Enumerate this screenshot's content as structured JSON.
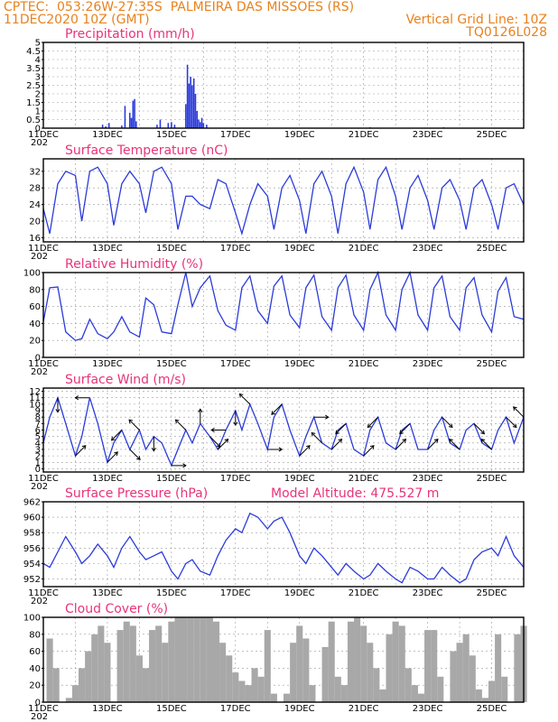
{
  "header": {
    "station": "CPTEC:  053:26W-27:35S  PALMEIRA DAS MISSOES (RS)",
    "run": "11DEC2020 10Z (GMT)",
    "grid": "Vertical Grid Line: 10Z",
    "code": "TQ0126L028"
  },
  "colors": {
    "header": "#e8811c",
    "title": "#e8337a",
    "series": "#2b3bd9",
    "cloud": "#a8a8a8"
  },
  "x_axis": {
    "start_day": 11,
    "end_day": 26,
    "labels": [
      {
        "day": 11,
        "text": "11DEC"
      },
      {
        "day": 13,
        "text": "13DEC"
      },
      {
        "day": 15,
        "text": "15DEC"
      },
      {
        "day": 17,
        "text": "17DEC"
      },
      {
        "day": 19,
        "text": "19DEC"
      },
      {
        "day": 21,
        "text": "21DEC"
      },
      {
        "day": 23,
        "text": "23DEC"
      },
      {
        "day": 25,
        "text": "25DEC"
      }
    ],
    "year_stub": "202"
  },
  "chart_data": [
    {
      "type": "bar",
      "title": "Precipitation (mm/h)",
      "ylim": [
        0,
        5
      ],
      "yticks": [
        "0",
        "0.5",
        "1",
        "1.5",
        "2",
        "2.5",
        "3",
        "3.5",
        "4",
        "4.5",
        "5"
      ],
      "x": [
        12.85,
        12.95,
        13.05,
        13.45,
        13.55,
        13.7,
        13.75,
        13.8,
        13.85,
        13.9,
        14.55,
        14.65,
        14.9,
        15.0,
        15.1,
        15.45,
        15.5,
        15.55,
        15.6,
        15.65,
        15.7,
        15.75,
        15.8,
        15.85,
        15.9,
        15.95,
        16.0,
        16.1,
        21.2,
        23.5
      ],
      "values": [
        0.2,
        0.1,
        0.3,
        0.15,
        1.3,
        0.9,
        0.6,
        1.6,
        1.7,
        0.4,
        0.2,
        0.5,
        0.3,
        0.35,
        0.2,
        1.4,
        3.7,
        2.6,
        3.0,
        2.5,
        2.9,
        2.0,
        1.0,
        0.5,
        0.35,
        0.6,
        0.3,
        0.2,
        0.05,
        0.05
      ]
    },
    {
      "type": "line",
      "title": "Surface Temperature (nC)",
      "ylim": [
        15,
        35
      ],
      "yticks": [
        "16",
        "20",
        "24",
        "28",
        "32"
      ],
      "x": [
        11.0,
        11.2,
        11.45,
        11.7,
        12.0,
        12.2,
        12.45,
        12.7,
        13.0,
        13.2,
        13.45,
        13.7,
        14.0,
        14.2,
        14.45,
        14.7,
        15.0,
        15.2,
        15.45,
        15.65,
        15.9,
        16.2,
        16.45,
        16.7,
        17.0,
        17.2,
        17.45,
        17.7,
        18.0,
        18.2,
        18.45,
        18.7,
        19.0,
        19.2,
        19.45,
        19.7,
        20.0,
        20.2,
        20.45,
        20.7,
        21.0,
        21.2,
        21.45,
        21.7,
        22.0,
        22.2,
        22.45,
        22.7,
        23.0,
        23.2,
        23.45,
        23.7,
        24.0,
        24.2,
        24.45,
        24.7,
        25.0,
        25.2,
        25.45,
        25.7,
        26.0
      ],
      "values": [
        23,
        17,
        29,
        32,
        31,
        20,
        32,
        33,
        29,
        19,
        29,
        32,
        29,
        22,
        32,
        33,
        29,
        18,
        26,
        26,
        24,
        23,
        30,
        29,
        22,
        17,
        24,
        29,
        26,
        18,
        28,
        31,
        25,
        17,
        29,
        32,
        26,
        17,
        29,
        33,
        27,
        18,
        30,
        33,
        26,
        18,
        28,
        31,
        25,
        18,
        28,
        30,
        25,
        18,
        28,
        30,
        24,
        18,
        28,
        29,
        24
      ]
    },
    {
      "type": "line",
      "title": "Relative Humidity (%)",
      "ylim": [
        0,
        100
      ],
      "yticks": [
        "0",
        "20",
        "40",
        "60",
        "80",
        "100"
      ],
      "x": [
        11.0,
        11.2,
        11.45,
        11.7,
        12.0,
        12.2,
        12.45,
        12.7,
        13.0,
        13.2,
        13.45,
        13.7,
        14.0,
        14.2,
        14.45,
        14.7,
        15.0,
        15.2,
        15.45,
        15.65,
        15.9,
        16.2,
        16.45,
        16.7,
        17.0,
        17.2,
        17.45,
        17.7,
        18.0,
        18.2,
        18.45,
        18.7,
        19.0,
        19.2,
        19.45,
        19.7,
        20.0,
        20.2,
        20.45,
        20.7,
        21.0,
        21.2,
        21.45,
        21.7,
        22.0,
        22.2,
        22.45,
        22.7,
        23.0,
        23.2,
        23.45,
        23.7,
        24.0,
        24.2,
        24.45,
        24.7,
        25.0,
        25.2,
        25.45,
        25.7,
        26.0
      ],
      "values": [
        42,
        82,
        83,
        30,
        20,
        22,
        45,
        28,
        22,
        30,
        48,
        30,
        24,
        70,
        62,
        30,
        28,
        62,
        100,
        60,
        82,
        96,
        55,
        38,
        32,
        82,
        96,
        55,
        40,
        84,
        96,
        50,
        35,
        82,
        97,
        48,
        32,
        82,
        97,
        50,
        32,
        80,
        100,
        50,
        32,
        80,
        100,
        50,
        32,
        82,
        96,
        48,
        32,
        82,
        94,
        50,
        30,
        78,
        94,
        48,
        45
      ]
    },
    {
      "type": "line",
      "title": "Surface Wind (m/s)",
      "ylim": [
        -0.5,
        12.5
      ],
      "yticks": [
        "0",
        "1",
        "2",
        "3",
        "4",
        "5",
        "6",
        "7",
        "8",
        "9",
        "10",
        "11",
        "12"
      ],
      "x": [
        11.0,
        11.2,
        11.45,
        11.7,
        12.0,
        12.2,
        12.45,
        12.7,
        13.0,
        13.2,
        13.45,
        13.7,
        14.0,
        14.2,
        14.45,
        14.7,
        15.0,
        15.2,
        15.45,
        15.65,
        15.9,
        16.2,
        16.45,
        16.7,
        17.0,
        17.2,
        17.45,
        17.7,
        18.0,
        18.2,
        18.45,
        18.7,
        19.0,
        19.2,
        19.45,
        19.7,
        20.0,
        20.2,
        20.45,
        20.7,
        21.0,
        21.2,
        21.45,
        21.7,
        22.0,
        22.2,
        22.45,
        22.7,
        23.0,
        23.2,
        23.45,
        23.7,
        24.0,
        24.2,
        24.45,
        24.7,
        25.0,
        25.2,
        25.45,
        25.7,
        26.0
      ],
      "values": [
        4,
        8,
        11,
        7,
        2,
        5,
        11,
        7,
        1,
        4,
        6,
        3,
        6,
        3,
        5,
        4,
        0.5,
        3,
        6,
        4,
        7,
        5,
        3,
        6,
        9,
        6,
        10,
        7,
        3,
        8,
        10,
        6,
        2,
        5,
        8,
        4,
        3,
        6,
        7,
        3,
        2,
        6,
        8,
        4,
        3,
        6,
        7,
        3,
        3,
        6,
        8,
        4,
        3,
        6,
        7,
        4,
        3,
        6,
        8,
        4,
        8
      ]
    },
    {
      "type": "line",
      "title": "Surface Pressure (hPa)",
      "ylim": [
        951,
        962
      ],
      "yticks": [
        "952",
        "954",
        "956",
        "958",
        "960",
        "962"
      ],
      "x": [
        11.0,
        11.2,
        11.45,
        11.7,
        12.0,
        12.2,
        12.45,
        12.7,
        13.0,
        13.2,
        13.45,
        13.7,
        14.0,
        14.2,
        14.45,
        14.7,
        15.0,
        15.2,
        15.45,
        15.65,
        15.9,
        16.2,
        16.45,
        16.7,
        17.0,
        17.2,
        17.45,
        17.7,
        18.0,
        18.2,
        18.45,
        18.7,
        19.0,
        19.2,
        19.45,
        19.7,
        20.0,
        20.2,
        20.45,
        20.7,
        21.0,
        21.2,
        21.45,
        21.7,
        22.0,
        22.2,
        22.45,
        22.7,
        23.0,
        23.2,
        23.45,
        23.7,
        24.0,
        24.2,
        24.45,
        24.7,
        25.0,
        25.2,
        25.45,
        25.7,
        26.0
      ],
      "values": [
        954,
        953.5,
        955.5,
        957.5,
        955.5,
        954,
        955,
        956.5,
        955,
        953.5,
        956,
        957.5,
        955.5,
        954.5,
        955,
        955.5,
        953,
        952,
        954,
        954.5,
        953,
        952.5,
        955,
        957,
        958.5,
        958,
        960.5,
        960,
        958.5,
        959.5,
        960,
        958,
        955,
        954,
        956,
        955,
        953.5,
        952.5,
        954,
        953,
        952,
        952.5,
        954,
        953,
        952,
        951.5,
        953.5,
        953,
        952,
        952,
        953.5,
        952.5,
        951.5,
        952,
        954.5,
        955.5,
        956,
        955,
        957.5,
        955,
        953.5
      ]
    },
    {
      "type": "bar",
      "title": "Cloud Cover (%)",
      "ylim": [
        0,
        100
      ],
      "yticks": [
        "0",
        "20",
        "40",
        "60",
        "80",
        "100"
      ],
      "x": [
        11.2,
        11.4,
        11.6,
        11.8,
        12.0,
        12.2,
        12.4,
        12.6,
        12.8,
        13.0,
        13.2,
        13.4,
        13.6,
        13.8,
        14.0,
        14.2,
        14.4,
        14.6,
        14.8,
        15.0,
        15.2,
        15.4,
        15.6,
        15.8,
        16.0,
        16.2,
        16.4,
        16.6,
        16.8,
        17.0,
        17.2,
        17.4,
        17.6,
        17.8,
        18.0,
        18.2,
        18.4,
        18.6,
        18.8,
        19.0,
        19.2,
        19.4,
        19.6,
        19.8,
        20.0,
        20.2,
        20.4,
        20.6,
        20.8,
        21.0,
        21.2,
        21.4,
        21.6,
        21.8,
        22.0,
        22.2,
        22.4,
        22.6,
        22.8,
        23.0,
        23.2,
        23.4,
        23.6,
        23.8,
        24.0,
        24.2,
        24.4,
        24.6,
        24.8,
        25.0,
        25.2,
        25.4,
        25.6,
        25.8,
        26.0
      ],
      "values": [
        75,
        40,
        0,
        5,
        20,
        40,
        60,
        80,
        90,
        70,
        0,
        85,
        95,
        90,
        55,
        40,
        85,
        90,
        70,
        95,
        100,
        100,
        100,
        100,
        100,
        100,
        95,
        70,
        55,
        35,
        25,
        20,
        40,
        30,
        85,
        10,
        0,
        10,
        70,
        90,
        75,
        20,
        0,
        65,
        95,
        30,
        20,
        95,
        100,
        90,
        70,
        40,
        15,
        80,
        95,
        90,
        40,
        20,
        10,
        85,
        85,
        30,
        0,
        60,
        70,
        80,
        55,
        15,
        5,
        25,
        80,
        30,
        0,
        80,
        90
      ]
    }
  ],
  "wind_arrows": {
    "x": [
      11.45,
      12.0,
      12.45,
      13.0,
      13.45,
      13.7,
      14.0,
      14.45,
      15.0,
      15.45,
      15.9,
      16.2,
      16.45,
      16.7,
      17.0,
      17.45,
      18.0,
      18.45,
      19.0,
      19.45,
      19.7,
      20.0,
      20.45,
      21.0,
      21.45,
      22.0,
      22.45,
      23.0,
      23.45,
      24.0,
      24.45,
      25.0,
      25.45,
      26.0
    ],
    "dx": [
      0,
      1,
      -1,
      1,
      -1,
      1,
      -1,
      0,
      1,
      -1,
      0,
      1,
      1,
      -1,
      0,
      -1,
      1,
      -1,
      1,
      1,
      -1,
      1,
      -1,
      1,
      -1,
      1,
      -1,
      1,
      1,
      -1,
      1,
      -1,
      1,
      -1
    ],
    "dy": [
      -1,
      1,
      0,
      1,
      -1,
      -1,
      1,
      -1,
      0,
      1,
      1,
      -1,
      1,
      0,
      -1,
      1,
      0,
      -1,
      1,
      0,
      1,
      1,
      -1,
      1,
      -1,
      1,
      -1,
      1,
      -1,
      1,
      -1,
      1,
      -1,
      1
    ]
  },
  "model_altitude": "Model Altitude: 475.527 m"
}
